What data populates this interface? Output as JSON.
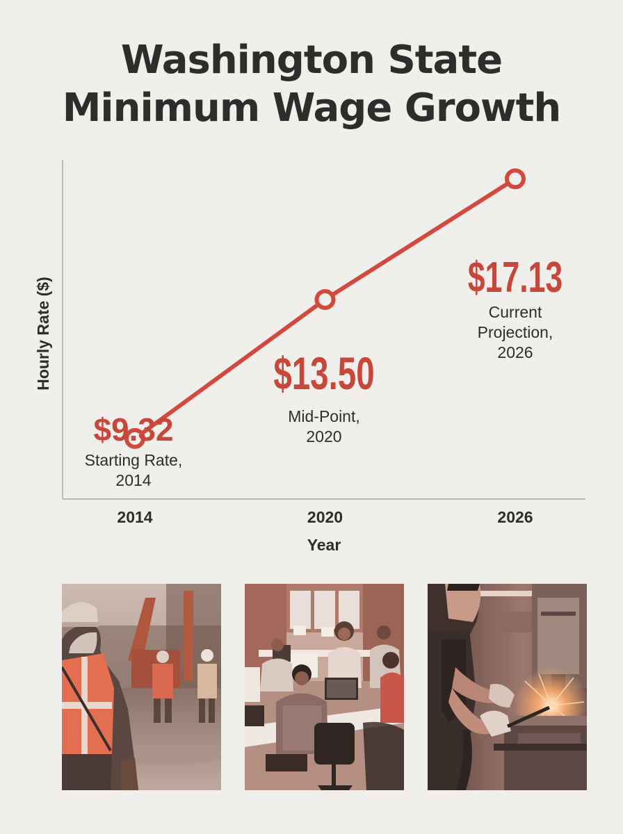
{
  "header": {
    "title_line1": "Washington State",
    "title_line2": "Minimum Wage Growth"
  },
  "chart_data": {
    "type": "line",
    "x": [
      2014,
      2020,
      2026
    ],
    "categories": [
      "2014",
      "2020",
      "2026"
    ],
    "values": [
      9.32,
      13.5,
      17.13
    ],
    "ylabel": "Hourly Rate ($)",
    "xlabel": "Year",
    "ylim": [
      7.5,
      17.7
    ],
    "grid": false,
    "legend": "none",
    "annotations": [
      {
        "value": "$9.32",
        "caption": [
          "Starting Rate,",
          "2014"
        ]
      },
      {
        "value": "$13.50",
        "caption": [
          "Mid-Point,",
          "2020"
        ]
      },
      {
        "value": "$17.13",
        "caption": [
          "Current",
          "Projection,",
          "2026"
        ]
      }
    ],
    "colors": {
      "line": "#d2493d",
      "value_text": "#c8473b",
      "axis": "#bdb9b4"
    }
  },
  "photos": [
    {
      "name": "construction-worker-photo"
    },
    {
      "name": "office-workers-photo"
    },
    {
      "name": "factory-welder-photo"
    }
  ]
}
